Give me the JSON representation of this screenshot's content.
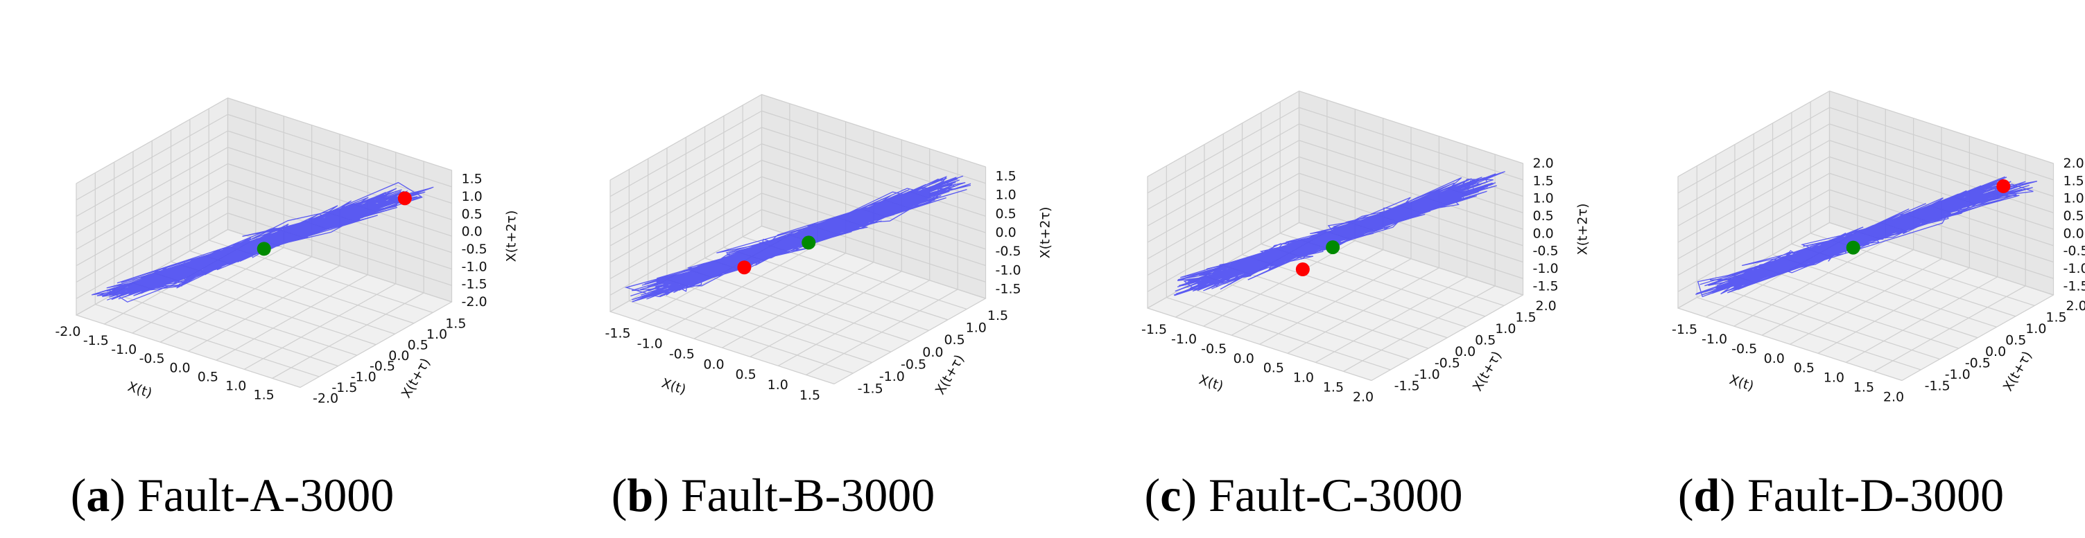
{
  "colors": {
    "trajectory": "#4a4af2",
    "start_point": "#ff0000",
    "center_point": "#008a00",
    "pane": "#ececec",
    "grid": "#cfcfcf"
  },
  "chart_data": [
    {
      "type": "scatter",
      "panel": "a",
      "caption": {
        "letter": "(a)",
        "text": "Fault-A-3000"
      },
      "xlabel": "X(t)",
      "ylabel": "X(t+τ)",
      "zlabel": "X(t+2τ)",
      "xlim": [
        -2.0,
        2.0
      ],
      "ylim": [
        -2.0,
        2.0
      ],
      "zlim": [
        -2.0,
        1.75
      ],
      "xticks": [
        "-2.0",
        "-1.5",
        "-1.0",
        "-0.5",
        "0.0",
        "0.5",
        "1.0",
        "1.5"
      ],
      "yticks": [
        "-2.0",
        "-1.5",
        "-1.0",
        "-0.5",
        "0.0",
        "0.5",
        "1.0",
        "1.5"
      ],
      "zticks": [
        "-2.0",
        "-1.5",
        "-1.0",
        "-0.5",
        "0.0",
        "0.5",
        "1.0",
        "1.5"
      ],
      "red_point": [
        1.5,
        1.5,
        1.0
      ],
      "green_point": [
        0.0,
        0.0,
        -0.3
      ],
      "grid": true
    },
    {
      "type": "scatter",
      "panel": "b",
      "caption": {
        "letter": "(b)",
        "text": "Fault-B-3000"
      },
      "xlabel": "X(t)",
      "ylabel": "X(t+τ)",
      "zlabel": "X(t+2τ)",
      "xlim": [
        -1.75,
        1.75
      ],
      "ylim": [
        -1.75,
        1.75
      ],
      "zlim": [
        -1.75,
        1.75
      ],
      "xticks": [
        "-1.5",
        "-1.0",
        "-0.5",
        "0.0",
        "0.5",
        "1.0",
        "1.5"
      ],
      "yticks": [
        "-1.5",
        "-1.0",
        "-0.5",
        "0.0",
        "0.5",
        "1.0",
        "1.5"
      ],
      "zticks": [
        "-1.5",
        "-1.0",
        "-0.5",
        "0.0",
        "0.5",
        "1.0",
        "1.5"
      ],
      "red_point": [
        -0.5,
        -0.5,
        -0.7
      ],
      "green_point": [
        0.1,
        0.1,
        -0.1
      ],
      "grid": true
    },
    {
      "type": "scatter",
      "panel": "c",
      "caption": {
        "letter": "(c)",
        "text": "Fault-C-3000"
      },
      "xlabel": "X(t)",
      "ylabel": "X(t+τ)",
      "zlabel": "X(t+2τ)",
      "xlim": [
        -1.75,
        2.0
      ],
      "ylim": [
        -1.75,
        2.0
      ],
      "zlim": [
        -1.75,
        2.0
      ],
      "xticks": [
        "-1.5",
        "-1.0",
        "-0.5",
        "0.0",
        "0.5",
        "1.0",
        "1.5",
        "2.0"
      ],
      "yticks": [
        "-1.5",
        "-1.0",
        "-0.5",
        "0.0",
        "0.5",
        "1.0",
        "1.5",
        "2.0"
      ],
      "zticks": [
        "-1.5",
        "-1.0",
        "-0.5",
        "0.0",
        "0.5",
        "1.0",
        "1.5",
        "2.0"
      ],
      "red_point": [
        -0.2,
        -0.2,
        -0.8
      ],
      "green_point": [
        0.1,
        0.1,
        -0.2
      ],
      "grid": true
    },
    {
      "type": "scatter",
      "panel": "d",
      "caption": {
        "letter": "(d)",
        "text": "Fault-D-3000"
      },
      "xlabel": "X(t)",
      "ylabel": "X(t+τ)",
      "zlabel": "X(t+2τ)",
      "xlim": [
        -1.75,
        2.0
      ],
      "ylim": [
        -1.75,
        2.0
      ],
      "zlim": [
        -1.75,
        2.0
      ],
      "xticks": [
        "-1.5",
        "-1.0",
        "-0.5",
        "0.0",
        "0.5",
        "1.0",
        "1.5",
        "2.0"
      ],
      "yticks": [
        "-1.5",
        "-1.0",
        "-0.5",
        "0.0",
        "0.5",
        "1.0",
        "1.5",
        "2.0"
      ],
      "zticks": [
        "-1.5",
        "-1.0",
        "-0.5",
        "0.0",
        "0.5",
        "1.0",
        "1.5",
        "2.0"
      ],
      "red_point": [
        1.5,
        1.5,
        1.4
      ],
      "green_point": [
        0.0,
        0.0,
        -0.2
      ],
      "grid": true
    }
  ]
}
